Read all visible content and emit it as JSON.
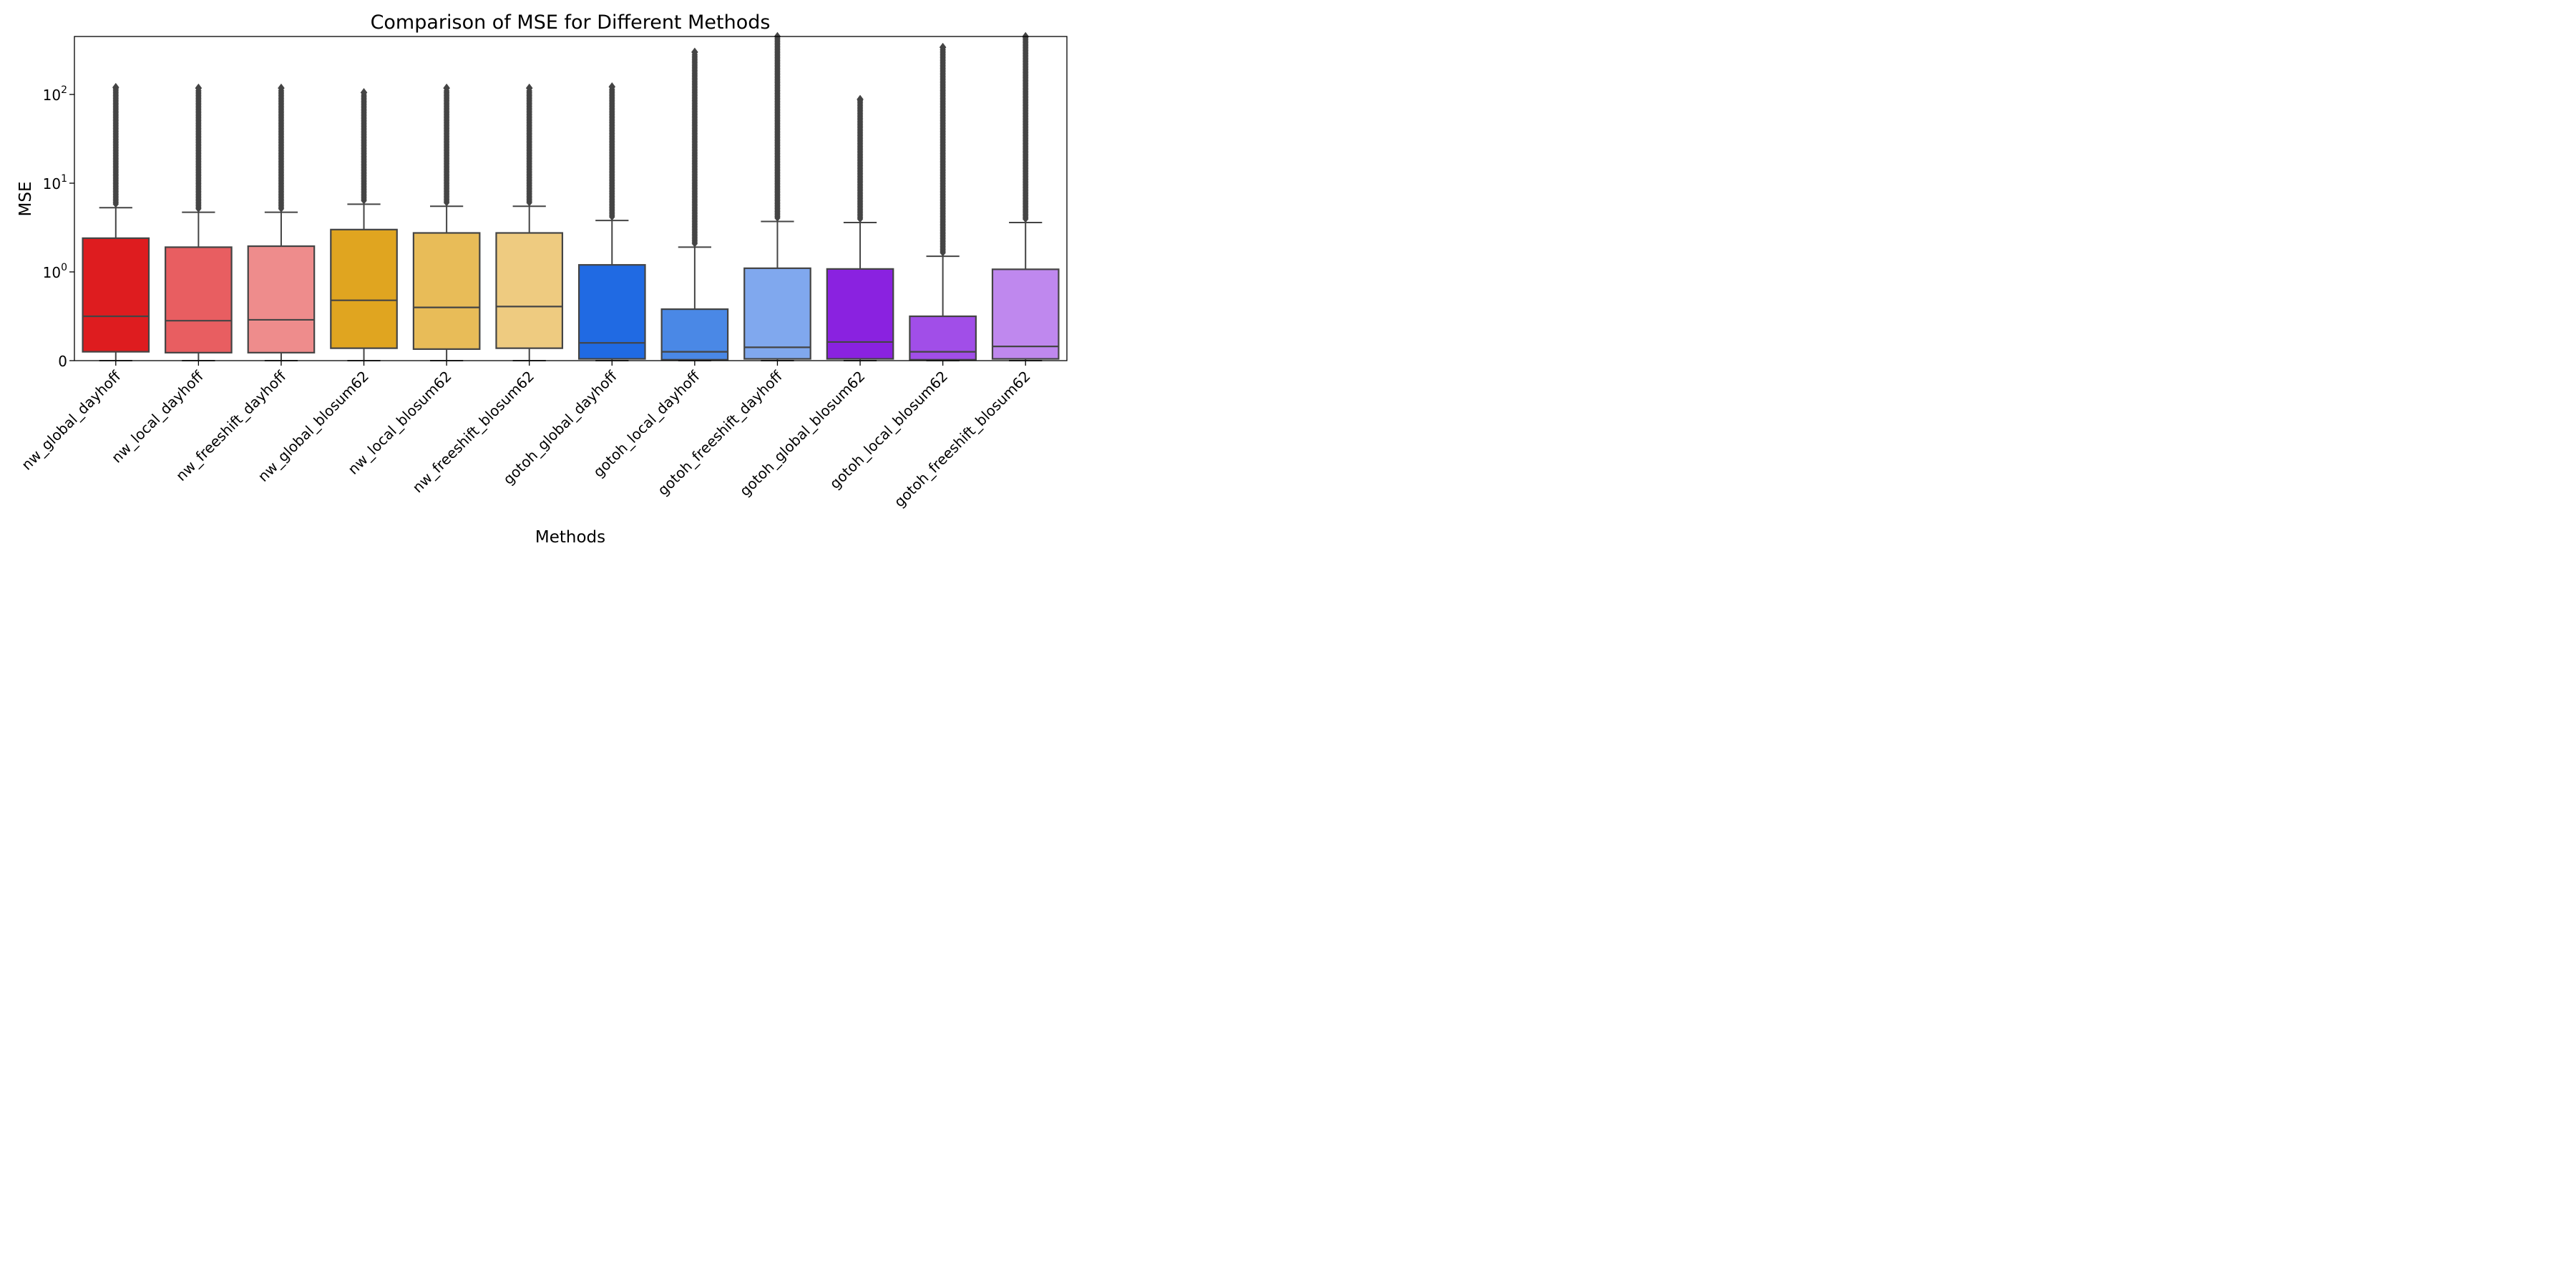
{
  "chart_data": {
    "type": "box",
    "title": "Comparison of MSE for Different Methods",
    "xlabel": "Methods",
    "ylabel": "MSE",
    "yscale": "symlog",
    "symlog_linthresh": 1,
    "ylim": [
      0,
      450
    ],
    "y_ticks": [
      {
        "value": 0,
        "base": "0",
        "exp": ""
      },
      {
        "value": 1,
        "base": "10",
        "exp": "0"
      },
      {
        "value": 10,
        "base": "10",
        "exp": "1"
      },
      {
        "value": 100,
        "base": "10",
        "exp": "2"
      }
    ],
    "grid": false,
    "legend": "none",
    "outlier_marker": "diamond",
    "box_edge_color": "#444444",
    "methods": [
      {
        "name": "nw_global_dayhoff",
        "color": "#de1c1f",
        "whisker_low": 0,
        "q1": 0.1,
        "median": 0.5,
        "q3": 2.4,
        "whisker_high": 5.3,
        "outlier_max": 120
      },
      {
        "name": "nw_local_dayhoff",
        "color": "#e85e61",
        "whisker_low": 0,
        "q1": 0.09,
        "median": 0.45,
        "q3": 1.9,
        "whisker_high": 4.7,
        "outlier_max": 118
      },
      {
        "name": "nw_freeshift_dayhoff",
        "color": "#ee8c8c",
        "whisker_low": 0,
        "q1": 0.09,
        "median": 0.46,
        "q3": 1.95,
        "whisker_high": 4.7,
        "outlier_max": 118
      },
      {
        "name": "nw_global_blosum62",
        "color": "#e0a520",
        "whisker_low": 0,
        "q1": 0.14,
        "median": 0.68,
        "q3": 3.0,
        "whisker_high": 5.8,
        "outlier_max": 105
      },
      {
        "name": "nw_local_blosum62",
        "color": "#e8bc58",
        "whisker_low": 0,
        "q1": 0.13,
        "median": 0.6,
        "q3": 2.75,
        "whisker_high": 5.5,
        "outlier_max": 118
      },
      {
        "name": "nw_freeshift_blosum62",
        "color": "#eecb80",
        "whisker_low": 0,
        "q1": 0.14,
        "median": 0.61,
        "q3": 2.75,
        "whisker_high": 5.5,
        "outlier_max": 118
      },
      {
        "name": "gotoh_global_dayhoff",
        "color": "#206ae3",
        "whisker_low": 0,
        "q1": 0.02,
        "median": 0.2,
        "q3": 1.2,
        "whisker_high": 3.8,
        "outlier_max": 122
      },
      {
        "name": "gotoh_local_dayhoff",
        "color": "#4a88e6",
        "whisker_low": 0,
        "q1": 0.01,
        "median": 0.1,
        "q3": 0.58,
        "whisker_high": 1.9,
        "outlier_max": 300
      },
      {
        "name": "gotoh_freeshift_dayhoff",
        "color": "#80a8ee",
        "whisker_low": 0,
        "q1": 0.02,
        "median": 0.15,
        "q3": 1.1,
        "whisker_high": 3.7,
        "outlier_max": 450
      },
      {
        "name": "gotoh_global_blosum62",
        "color": "#8a22e0",
        "whisker_low": 0,
        "q1": 0.02,
        "median": 0.21,
        "q3": 1.08,
        "whisker_high": 3.6,
        "outlier_max": 88
      },
      {
        "name": "gotoh_local_blosum62",
        "color": "#a14ee8",
        "whisker_low": 0,
        "q1": 0.01,
        "median": 0.1,
        "q3": 0.5,
        "whisker_high": 1.5,
        "outlier_max": 340
      },
      {
        "name": "gotoh_freeshift_blosum62",
        "color": "#bf88ee",
        "whisker_low": 0,
        "q1": 0.02,
        "median": 0.16,
        "q3": 1.07,
        "whisker_high": 3.6,
        "outlier_max": 450
      }
    ]
  }
}
